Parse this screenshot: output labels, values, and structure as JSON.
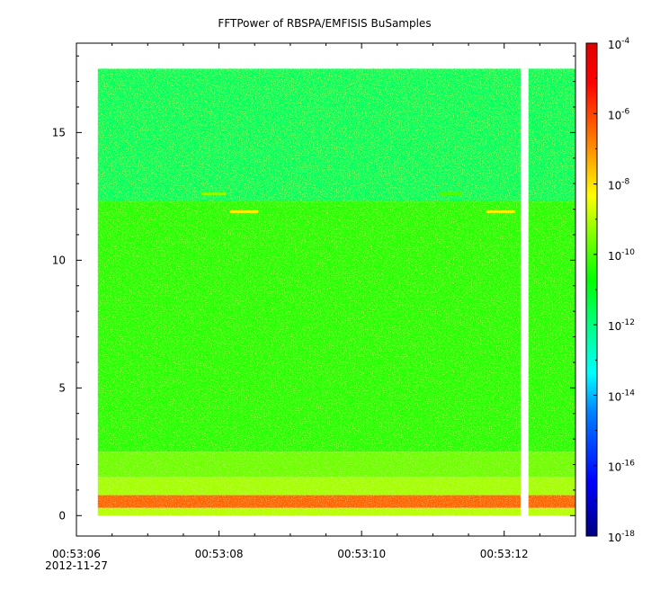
{
  "chart_data": {
    "type": "heatmap",
    "title": "FFTPower of RBSPA/EMFISIS  BuSamples",
    "xlabel": "",
    "ylabel": "",
    "x_range": [
      "00:53:06.0",
      "00:53:13.0"
    ],
    "y_range": [
      -0.8,
      18.5
    ],
    "x_ticks": [
      {
        "label": "00:53:06",
        "sublabel": "2012-11-27"
      },
      {
        "label": "00:53:08",
        "sublabel": ""
      },
      {
        "label": "00:53:10",
        "sublabel": ""
      },
      {
        "label": "00:53:12",
        "sublabel": ""
      }
    ],
    "y_ticks": [
      "0",
      "5",
      "10",
      "15"
    ],
    "y_tick_values": [
      0,
      5,
      10,
      15
    ],
    "data_extent": {
      "x_start": "00:53:06.3",
      "x_end": "00:53:13.0",
      "y_min": 0,
      "y_max": 17.5
    },
    "data_gap": {
      "x_start": "00:53:12.23",
      "x_end": "00:53:12.34"
    },
    "colorbar": {
      "scale": "log",
      "range": [
        1e-18,
        0.0001
      ],
      "ticks": [
        {
          "base": "10",
          "exp": "-4",
          "value": -4
        },
        {
          "base": "10",
          "exp": "-6",
          "value": -6
        },
        {
          "base": "10",
          "exp": "-8",
          "value": -8
        },
        {
          "base": "10",
          "exp": "-10",
          "value": -10
        },
        {
          "base": "10",
          "exp": "-12",
          "value": -12
        },
        {
          "base": "10",
          "exp": "-14",
          "value": -14
        },
        {
          "base": "10",
          "exp": "-16",
          "value": -16
        },
        {
          "base": "10",
          "exp": "-18",
          "value": -18
        }
      ]
    },
    "power_bands": [
      {
        "y_min": 12.3,
        "y_max": 17.5,
        "log_power": -12.0
      },
      {
        "y_min": 2.5,
        "y_max": 12.3,
        "log_power": -10.6
      },
      {
        "y_min": 1.5,
        "y_max": 2.5,
        "log_power": -9.8
      },
      {
        "y_min": 0.8,
        "y_max": 1.5,
        "log_power": -9.2
      },
      {
        "y_min": 0.3,
        "y_max": 0.8,
        "log_power": -6.5
      },
      {
        "y_min": 0.0,
        "y_max": 0.3,
        "log_power": -9.0
      }
    ],
    "features": [
      {
        "x_start": "00:53:08.15",
        "x_end": "00:53:08.55",
        "y": 11.9,
        "log_power": -8.0
      },
      {
        "x_start": "00:53:07.75",
        "x_end": "00:53:08.1",
        "y": 12.6,
        "log_power": -9.5
      },
      {
        "x_start": "00:53:11.75",
        "x_end": "00:53:12.15",
        "y": 11.9,
        "log_power": -8.0
      },
      {
        "x_start": "00:53:11.1",
        "x_end": "00:53:11.4",
        "y": 12.6,
        "log_power": -10.2
      }
    ]
  },
  "colors": {
    "colormap": [
      "#00007f",
      "#0000ff",
      "#007fff",
      "#00ffff",
      "#00ff7f",
      "#00ff00",
      "#7fff00",
      "#ffff00",
      "#ff7f00",
      "#ff0000",
      "#e00000"
    ]
  }
}
